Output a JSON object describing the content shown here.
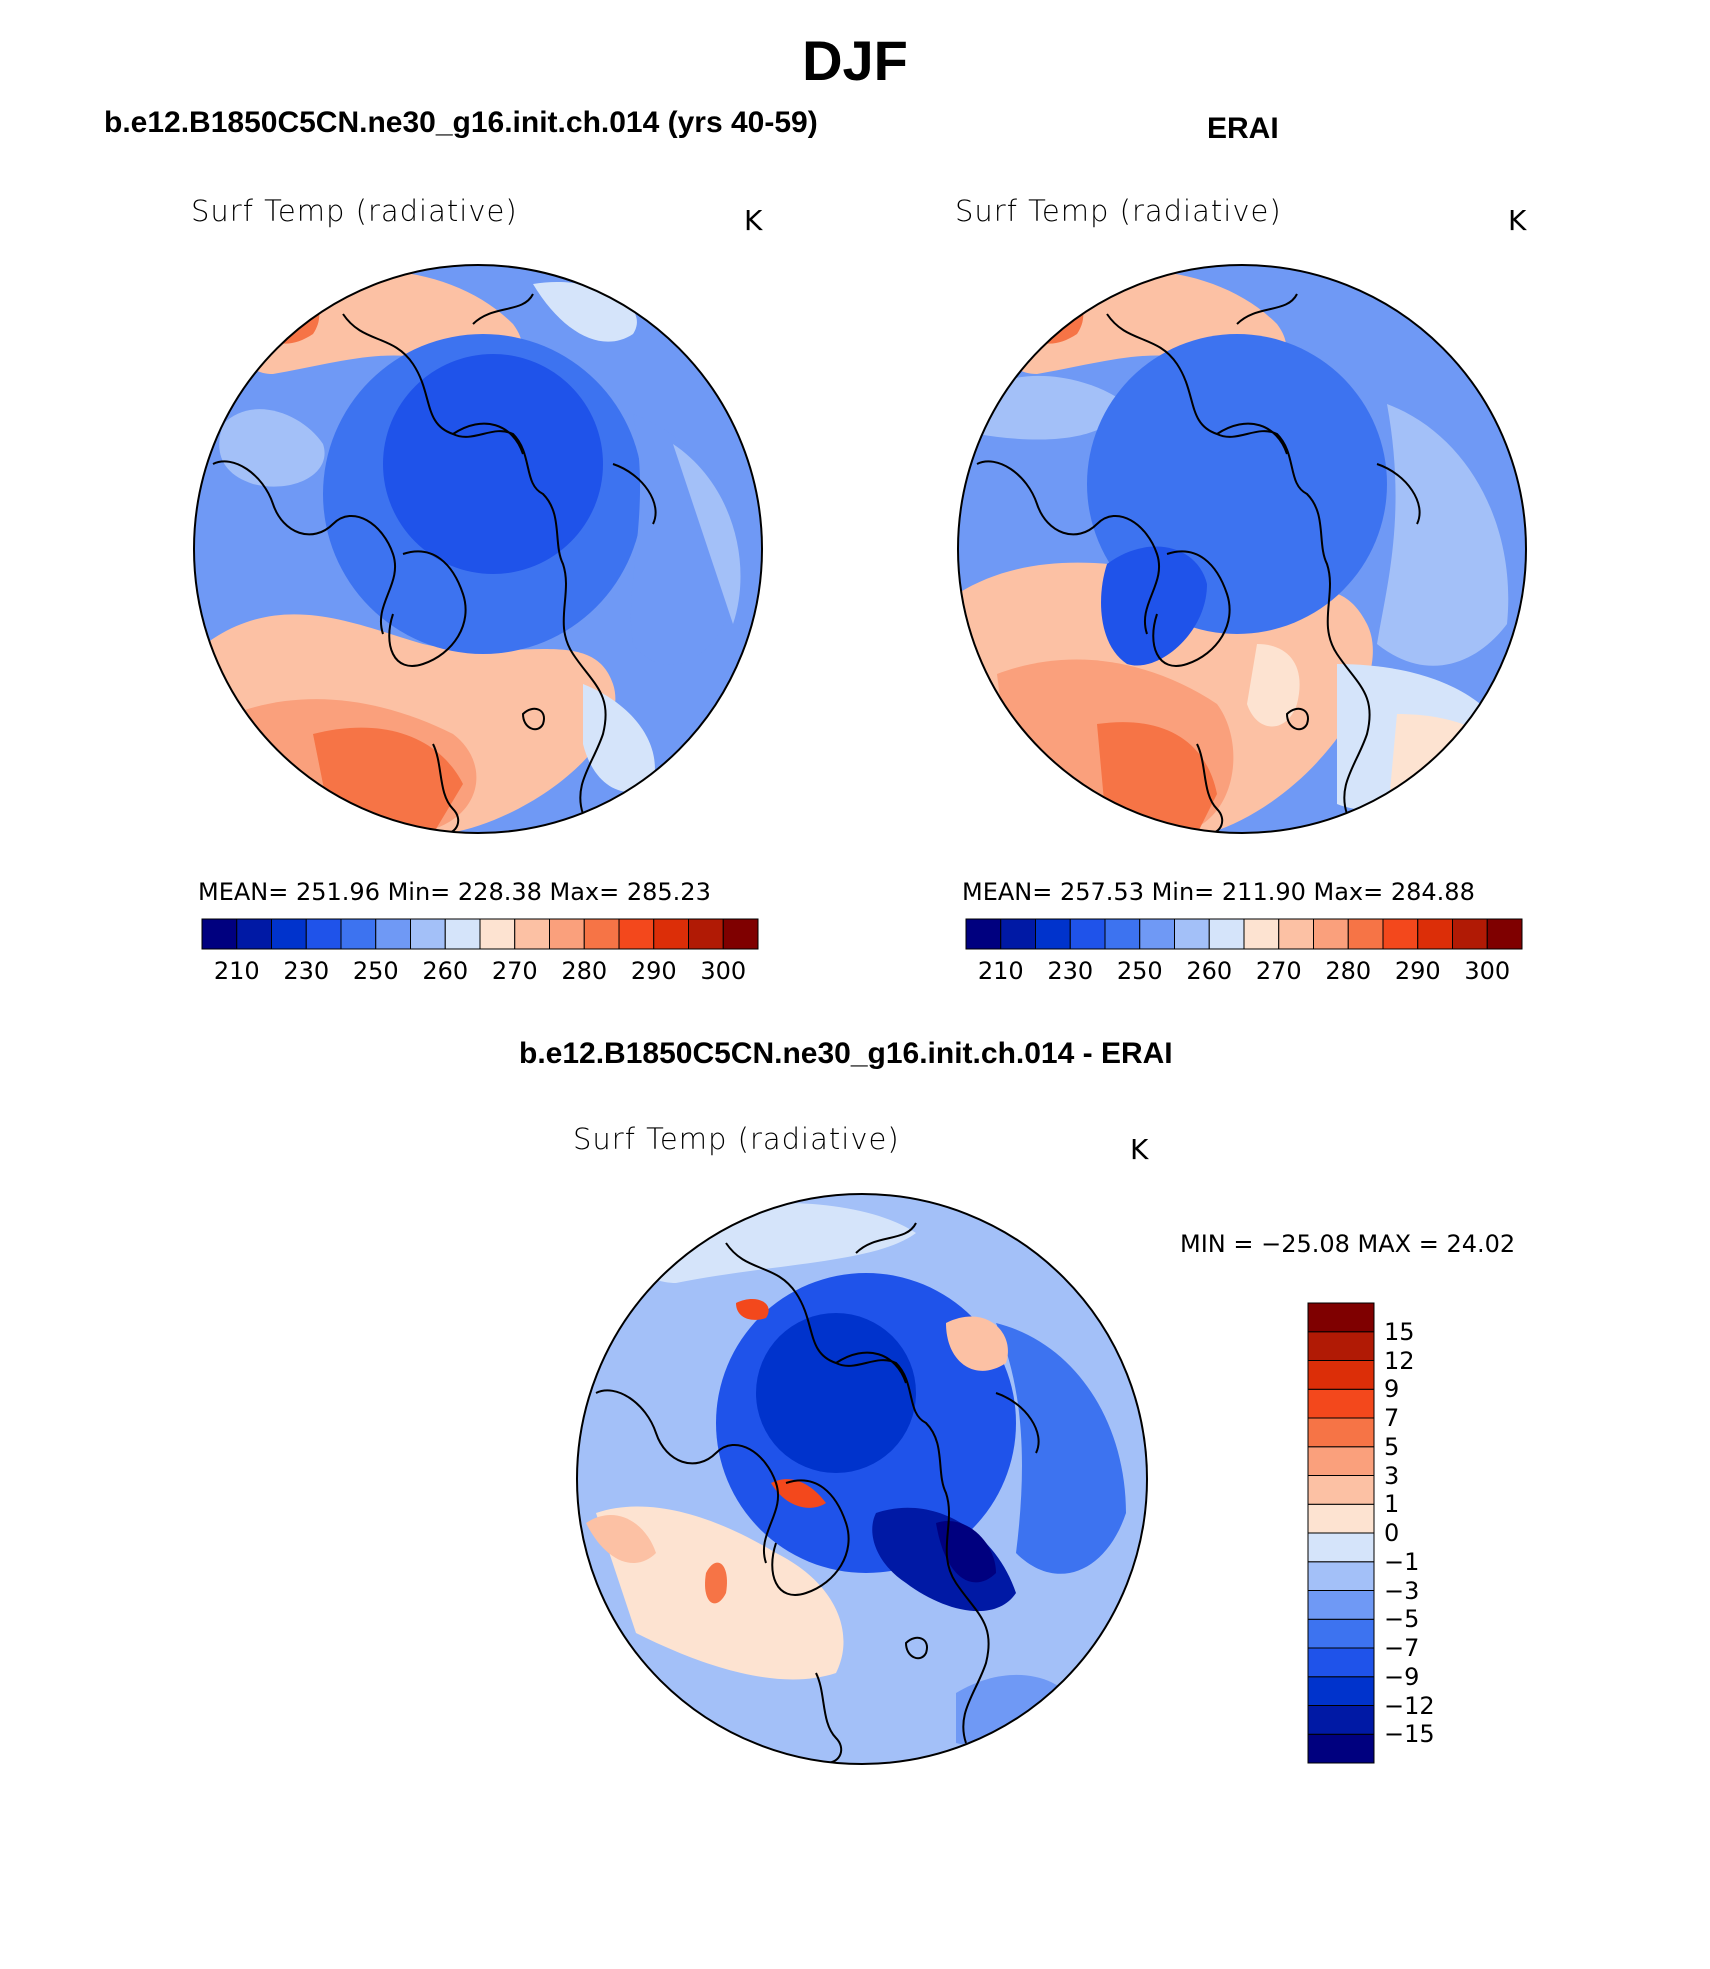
{
  "title": "DJF",
  "panels": [
    {
      "id": "model",
      "title": "b.e12.B1850C5CN.ne30_g16.init.ch.014 (yrs 40-59)",
      "variable": "Surf Temp (radiative)",
      "units": "K",
      "stats": "MEAN=  251.96    Min=  228.38    Max=  285.23"
    },
    {
      "id": "obs",
      "title": "ERAI",
      "variable": "Surf Temp (radiative)",
      "units": "K",
      "stats": "MEAN=  257.53    Min=  211.90    Max=  284.88"
    },
    {
      "id": "diff",
      "title": "b.e12.B1850C5CN.ne30_g16.init.ch.014 - ERAI",
      "variable": "Surf Temp (radiative)",
      "units": "K",
      "stats": "MIN = −25.08  MAX =   24.02"
    }
  ],
  "colorbar_abs": {
    "colors": [
      "#00007f",
      "#0019a5",
      "#0033cc",
      "#1f53ea",
      "#3d73f0",
      "#6f99f5",
      "#a3c0f8",
      "#d5e4fa",
      "#fde3d1",
      "#fcc1a4",
      "#faa07c",
      "#f67446",
      "#f3481c",
      "#dc2e08",
      "#b11a05",
      "#7f0000"
    ],
    "labels": [
      "210",
      "230",
      "250",
      "260",
      "270",
      "280",
      "290",
      "300"
    ]
  },
  "colorbar_diff": {
    "colors": [
      "#00007f",
      "#0019a5",
      "#0033cc",
      "#1f53ea",
      "#3d73f0",
      "#6f99f5",
      "#a3c0f8",
      "#d5e4fa",
      "#fde3d1",
      "#fcc1a4",
      "#faa07c",
      "#f67446",
      "#f3481c",
      "#dc2e08",
      "#b11a05",
      "#7f0000"
    ],
    "labels": [
      "−15",
      "−12",
      "−9",
      "−7",
      "−5",
      "−3",
      "−1",
      "0",
      "1",
      "3",
      "5",
      "7",
      "9",
      "12",
      "15"
    ]
  }
}
